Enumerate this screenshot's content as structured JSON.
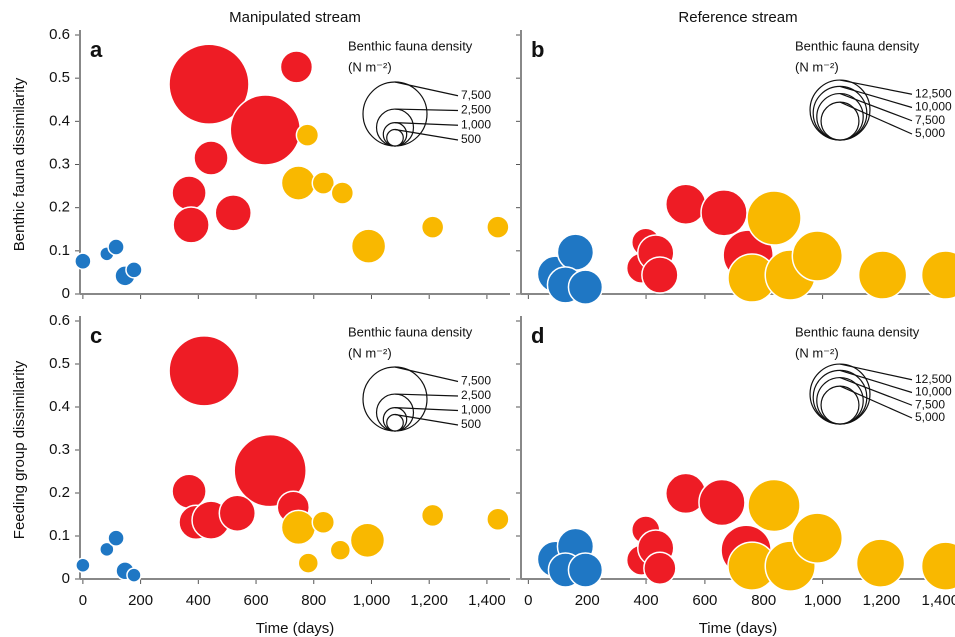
{
  "chart_data": [
    {
      "type": "bubble",
      "title": "Manipulated stream",
      "panel_label": "a",
      "ylabel": "Benthic fauna dissimilarity",
      "xlim": [
        -10,
        1480
      ],
      "ylim": [
        0,
        0.6
      ],
      "xticks": [
        0,
        200,
        400,
        600,
        800,
        {
          "value": 1000,
          "label": "1,000"
        },
        {
          "value": 1200,
          "label": "1,200"
        },
        {
          "value": 1400,
          "label": "1,400"
        }
      ],
      "yticks": [
        0,
        0.1,
        0.2,
        0.3,
        0.4,
        0.5,
        0.6
      ],
      "size_legend_title": "Benthic fauna density",
      "size_legend_unit": "(N m⁻²)",
      "size_legend": [
        {
          "value": 7500,
          "label": "7,500"
        },
        {
          "value": 2500,
          "label": "2,500"
        },
        {
          "value": 1000,
          "label": "1,000"
        },
        {
          "value": 500,
          "label": "500"
        }
      ],
      "series": [
        {
          "color": "#1f77c4",
          "x": [
            0,
            83,
            115,
            146,
            177
          ],
          "y": [
            0.076,
            0.093,
            0.109,
            0.042,
            0.056
          ],
          "sizes": [
            470,
            360,
            470,
            730,
            470
          ]
        },
        {
          "color": "#ee1c25",
          "x": [
            437,
            740,
            444,
            368,
            375,
            521,
            632
          ],
          "y": [
            0.486,
            0.526,
            0.315,
            0.234,
            0.16,
            0.188,
            0.38
          ],
          "sizes": [
            11700,
            1870,
            2120,
            2120,
            2370,
            2370,
            8970
          ]
        },
        {
          "color": "#f9b800",
          "x": [
            778,
            747,
            833,
            899,
            990,
            1212,
            1438
          ],
          "y": [
            0.368,
            0.257,
            0.257,
            0.234,
            0.111,
            0.155,
            0.155
          ],
          "sizes": [
            890,
            2120,
            890,
            890,
            2120,
            890,
            890
          ]
        }
      ]
    },
    {
      "type": "bubble",
      "title": "Reference stream",
      "panel_label": "b",
      "xlim": [
        -25,
        1450
      ],
      "ylim": [
        0,
        0.6
      ],
      "xticks": [
        0,
        200,
        400,
        600,
        800,
        {
          "value": 1000,
          "label": "1,000"
        },
        {
          "value": 1200,
          "label": "1,200"
        },
        {
          "value": 1400,
          "label": "1,400"
        }
      ],
      "yticks": [
        0,
        0.1,
        0.2,
        0.3,
        0.4,
        0.5,
        0.6
      ],
      "size_legend_title": "Benthic fauna density",
      "size_legend_unit": "(N m⁻²)",
      "size_legend": [
        {
          "value": 12500,
          "label": "12,500"
        },
        {
          "value": 10000,
          "label": "10,000"
        },
        {
          "value": 7500,
          "label": "7,500"
        },
        {
          "value": 5000,
          "label": "5,000"
        }
      ],
      "series": [
        {
          "color": "#1f77c4",
          "x": [
            92,
            160,
            126,
            194
          ],
          "y": [
            0.046,
            0.097,
            0.021,
            0.016
          ],
          "sizes": [
            4510,
            4510,
            4510,
            4020
          ]
        },
        {
          "color": "#ee1c25",
          "x": [
            399,
            385,
            433,
            447,
            535,
            665,
            747
          ],
          "y": [
            0.12,
            0.06,
            0.095,
            0.044,
            0.208,
            0.188,
            0.09
          ],
          "sizes": [
            2730,
            3130,
            4510,
            4510,
            5570,
            7370,
            8700
          ]
        },
        {
          "color": "#f9b800",
          "x": [
            835,
            760,
            890,
            982,
            1204,
            1418
          ],
          "y": [
            0.176,
            0.037,
            0.044,
            0.088,
            0.044,
            0.044
          ],
          "sizes": [
            10150,
            8020,
            8700,
            8700,
            8020,
            8020
          ]
        }
      ]
    },
    {
      "type": "bubble",
      "panel_label": "c",
      "ylabel": "Feeding group dissimilarity",
      "xlabel": "Time (days)",
      "xlim": [
        -10,
        1480
      ],
      "ylim": [
        0,
        0.6
      ],
      "xticks": [
        0,
        200,
        400,
        600,
        800,
        {
          "value": 1000,
          "label": "1,000"
        },
        {
          "value": 1200,
          "label": "1,200"
        },
        {
          "value": 1400,
          "label": "1,400"
        }
      ],
      "yticks": [
        0,
        0.1,
        0.2,
        0.3,
        0.4,
        0.5,
        0.6
      ],
      "size_legend_title": "Benthic fauna density",
      "size_legend_unit": "(N m⁻²)",
      "size_legend": [
        {
          "value": 7500,
          "label": "7,500"
        },
        {
          "value": 2500,
          "label": "2,500"
        },
        {
          "value": 1000,
          "label": "1,000"
        },
        {
          "value": 500,
          "label": "500"
        }
      ],
      "series": [
        {
          "color": "#1f77c4",
          "x": [
            0,
            83,
            115,
            146,
            177
          ],
          "y": [
            0.032,
            0.069,
            0.095,
            0.019,
            0.009
          ],
          "sizes": [
            360,
            360,
            470,
            590,
            360
          ]
        },
        {
          "color": "#ee1c25",
          "x": [
            420,
            649,
            368,
            392,
            444,
            535,
            729
          ],
          "y": [
            0.484,
            0.252,
            0.204,
            0.132,
            0.137,
            0.153,
            0.167
          ],
          "sizes": [
            8970,
            9490,
            2120,
            2120,
            2640,
            2370,
            1870
          ]
        },
        {
          "color": "#f9b800",
          "x": [
            747,
            833,
            781,
            892,
            986,
            1212,
            1438
          ],
          "y": [
            0.12,
            0.132,
            0.037,
            0.067,
            0.09,
            0.148,
            0.139
          ],
          "sizes": [
            2120,
            890,
            730,
            730,
            2120,
            890,
            890
          ]
        }
      ]
    },
    {
      "type": "bubble",
      "panel_label": "d",
      "xlabel": "Time (days)",
      "xlim": [
        -25,
        1450
      ],
      "ylim": [
        0,
        0.6
      ],
      "xticks": [
        0,
        200,
        400,
        600,
        800,
        {
          "value": 1000,
          "label": "1,000"
        },
        {
          "value": 1200,
          "label": "1,200"
        },
        {
          "value": 1400,
          "label": "1,400"
        }
      ],
      "yticks": [
        0,
        0.1,
        0.2,
        0.3,
        0.4,
        0.5,
        0.6
      ],
      "size_legend_title": "Benthic fauna density",
      "size_legend_unit": "(N m⁻²)",
      "size_legend": [
        {
          "value": 12500,
          "label": "12,500"
        },
        {
          "value": 10000,
          "label": "10,000"
        },
        {
          "value": 7500,
          "label": "7,500"
        },
        {
          "value": 5000,
          "label": "5,000"
        }
      ],
      "series": [
        {
          "color": "#1f77c4",
          "x": [
            92,
            160,
            126,
            194
          ],
          "y": [
            0.046,
            0.076,
            0.021,
            0.021
          ],
          "sizes": [
            4510,
            4510,
            4020,
            4020
          ]
        },
        {
          "color": "#ee1c25",
          "x": [
            399,
            385,
            433,
            447,
            535,
            658,
            740
          ],
          "y": [
            0.114,
            0.044,
            0.072,
            0.025,
            0.199,
            0.178,
            0.067
          ],
          "sizes": [
            2730,
            3130,
            4510,
            3560,
            5570,
            7370,
            8700
          ]
        },
        {
          "color": "#f9b800",
          "x": [
            835,
            760,
            890,
            982,
            1197,
            1418
          ],
          "y": [
            0.171,
            0.03,
            0.03,
            0.095,
            0.037,
            0.03
          ],
          "sizes": [
            9410,
            8020,
            8700,
            8700,
            8020,
            8020
          ]
        }
      ]
    }
  ]
}
